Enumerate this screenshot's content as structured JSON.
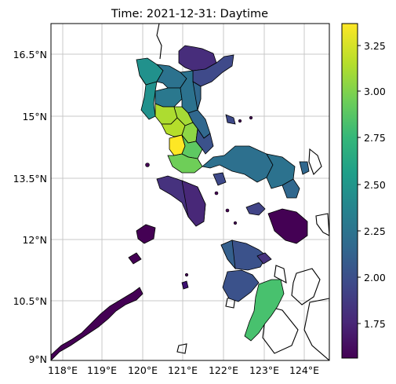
{
  "title": "Time: 2021-12-31: Daytime",
  "map": {
    "lon_ticks": [
      "118°E",
      "119°E",
      "120°E",
      "121°E",
      "122°E",
      "123°E",
      "124°E"
    ],
    "lat_ticks": [
      "16.5°N",
      "15°N",
      "13.5°N",
      "12°N",
      "10.5°N",
      "9°N"
    ],
    "gridlines": true,
    "colormap": "viridis"
  },
  "colorbar": {
    "ticks": [
      "3.25",
      "3.00",
      "2.75",
      "2.50",
      "2.25",
      "2.00",
      "1.75"
    ],
    "range": [
      1.55,
      3.37
    ]
  },
  "colors": {
    "viridis_stops": [
      "#440154",
      "#482878",
      "#3e4989",
      "#31688e",
      "#26828e",
      "#1f9e89",
      "#35b779",
      "#6ece58",
      "#b5de2b",
      "#fde725"
    ]
  }
}
